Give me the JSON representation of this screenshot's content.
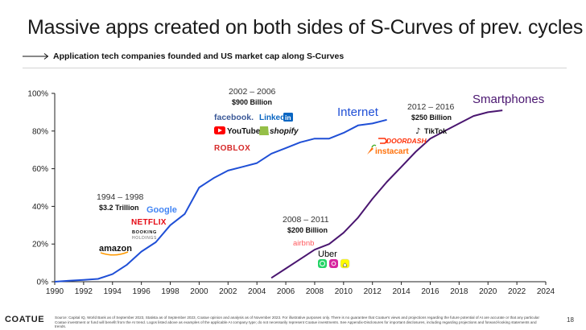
{
  "header": {
    "title": "Massive apps created on both sides of S-Curves of prev. cycles",
    "subtitle": "Application tech companies founded and US market cap along S-Curves"
  },
  "chart_data": {
    "type": "line",
    "x_ticks": [
      "1990",
      "1992",
      "1994",
      "1996",
      "1998",
      "2000",
      "2002",
      "2004",
      "2006",
      "2008",
      "2010",
      "2012",
      "2014",
      "2016",
      "2018",
      "2020",
      "2022",
      "2024"
    ],
    "y_ticks": [
      "0%",
      "20%",
      "40%",
      "60%",
      "80%",
      "100%"
    ],
    "xlim": [
      1990,
      2024
    ],
    "ylim": [
      0,
      100
    ],
    "grid": false,
    "series": [
      {
        "name": "Internet",
        "color": "#1f4fd6",
        "x": [
          1990,
          1991,
          1992,
          1993,
          1994,
          1995,
          1996,
          1997,
          1998,
          1999,
          2000,
          2001,
          2002,
          2003,
          2004,
          2005,
          2006,
          2007,
          2008,
          2009,
          2010,
          2011,
          2012,
          2013
        ],
        "y": [
          0,
          0.5,
          1,
          1.5,
          4,
          9,
          16,
          21,
          30,
          36,
          50,
          55,
          59,
          61,
          63,
          68,
          71,
          74,
          76,
          76,
          79,
          83,
          84,
          86
        ]
      },
      {
        "name": "Smartphones",
        "color": "#4a1670",
        "x": [
          2005,
          2006,
          2007,
          2008,
          2009,
          2010,
          2011,
          2012,
          2013,
          2014,
          2015,
          2016,
          2017,
          2018,
          2019,
          2020,
          2021
        ],
        "y": [
          2,
          7,
          12,
          17,
          20,
          26,
          34,
          44,
          53,
          61,
          69,
          76,
          80,
          84,
          88,
          90,
          91
        ]
      }
    ],
    "annotations": [
      {
        "period": "1994 – 1998",
        "value": "$3.2 Trillion"
      },
      {
        "period": "2002 – 2006",
        "value": "$900 Billion"
      },
      {
        "period": "2008 – 2011",
        "value": "$200 Billion"
      },
      {
        "period": "2012 – 2016",
        "value": "$250 Billion"
      }
    ],
    "logos": {
      "era_1994": [
        "Google",
        "NETFLIX",
        "BOOKING",
        "HOLDINGS",
        "amazon"
      ],
      "era_2002": [
        "facebook.",
        "Linked",
        "in",
        "YouTube",
        "shopify",
        "ROBLOX"
      ],
      "era_2008": [
        "airbnb",
        "Uber"
      ],
      "era_2012": [
        "TikTok",
        "DOORDASH",
        "instacart"
      ]
    }
  },
  "footer": {
    "brand": "COATUE",
    "note": "Source: Capital IQ, World Bank as of September 2023, Statista as of September 2023, Coatue opinion and analysis as of November 2023. For illustrative purposes only. There is no guarantee that Coatue's views and projections regarding the future potential of AI are accurate or that any particular Coatue investment or fund will benefit from the AI trend. Logos listed above as examples of the applicable AI company type; do not necessarily represent Coatue investments. See Appendix-Disclosures for important disclosures, including regarding projections and forward-looking statements and trends.",
    "page": "18"
  }
}
